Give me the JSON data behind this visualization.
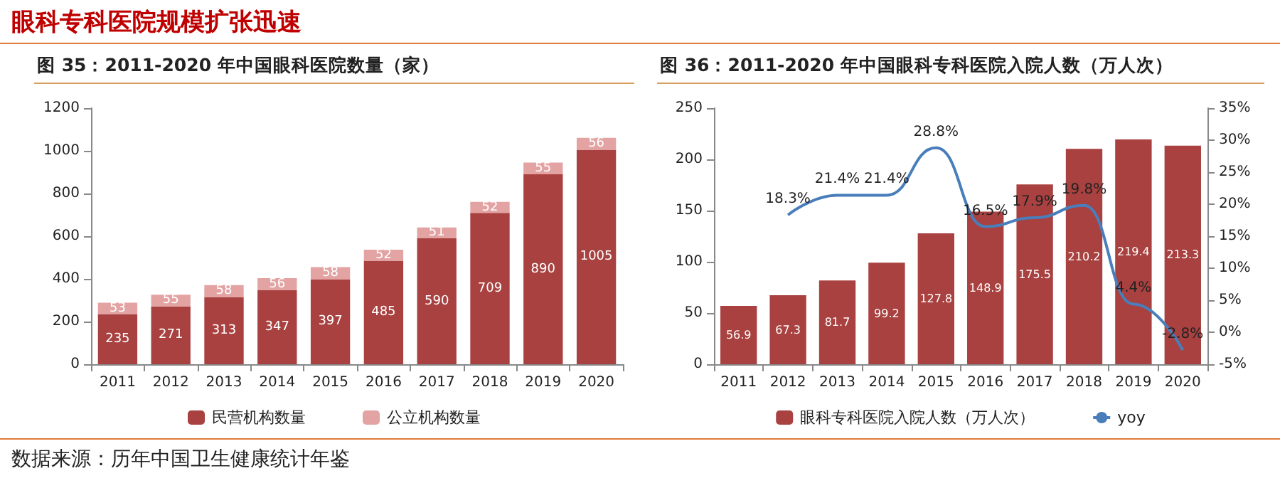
{
  "chart_data": [
    {
      "type": "bar",
      "title": "图 35：2011-2020 年中国眼科医院数量（家）",
      "annotations": [
        "眼科专科医院规模扩张迅速",
        "数据来源：历年中国卫生健康统计年鉴"
      ],
      "categories": [
        "2011",
        "2012",
        "2013",
        "2014",
        "2015",
        "2016",
        "2017",
        "2018",
        "2019",
        "2020"
      ],
      "stacked": true,
      "series": [
        {
          "name": "民营机构数量",
          "color": "#a8413f",
          "values": [
            235,
            271,
            313,
            347,
            397,
            485,
            590,
            709,
            890,
            1005
          ]
        },
        {
          "name": "公立机构数量",
          "color": "#e3a3a3",
          "values": [
            53,
            55,
            58,
            56,
            58,
            52,
            51,
            52,
            55,
            56
          ]
        }
      ],
      "ylim": [
        0,
        1200
      ],
      "yticks": [
        0,
        200,
        400,
        600,
        800,
        1000,
        1200
      ],
      "data_labels": true,
      "grid": false,
      "legend": "bottom"
    },
    {
      "type": "bar",
      "title": "图 36：2011-2020 年中国眼科专科医院入院人数（万人次）",
      "categories": [
        "2011",
        "2012",
        "2013",
        "2014",
        "2015",
        "2016",
        "2017",
        "2018",
        "2019",
        "2020"
      ],
      "series": [
        {
          "name": "眼科专科医院入院人数（万人次）",
          "color": "#a8413f",
          "values": [
            56.9,
            67.3,
            81.7,
            99.2,
            127.8,
            148.9,
            175.5,
            210.2,
            219.4,
            213.3
          ],
          "value_labels": [
            "56.9",
            "67.3",
            "81.7",
            "99.2",
            "127.8",
            "148.9",
            "175.5",
            "210.2",
            "219.4",
            "213.3"
          ]
        },
        {
          "name": "yoy",
          "type": "line",
          "axis": "y2",
          "color": "#4a7ebb",
          "values": [
            null,
            18.3,
            21.4,
            21.4,
            28.8,
            16.5,
            17.9,
            19.8,
            4.4,
            -2.8
          ],
          "value_labels": [
            null,
            "18.3%",
            "21.4%",
            "21.4%",
            "28.8%",
            "16.5%",
            "17.9%",
            "19.8%",
            "4.4%",
            "-2.8%"
          ]
        }
      ],
      "ylim": [
        0,
        250
      ],
      "yticks": [
        0,
        50,
        100,
        150,
        200,
        250
      ],
      "y2lim": [
        -5,
        35
      ],
      "y2ticks": [
        {
          "value": -5,
          "label": "-5%"
        },
        {
          "value": 0,
          "label": "0%"
        },
        {
          "value": 5,
          "label": "5%"
        },
        {
          "value": 10,
          "label": "10%"
        },
        {
          "value": 15,
          "label": "15%"
        },
        {
          "value": 20,
          "label": "20%"
        },
        {
          "value": 25,
          "label": "25%"
        },
        {
          "value": 30,
          "label": "30%"
        },
        {
          "value": 35,
          "label": "35%"
        }
      ],
      "marker": "none",
      "grid": false,
      "legend": "bottom"
    }
  ]
}
